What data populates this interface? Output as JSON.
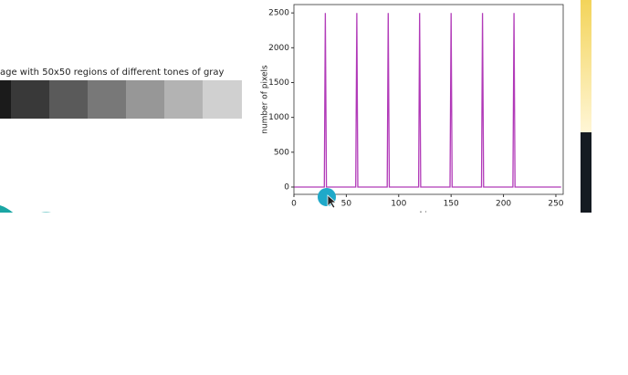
{
  "caption": "age with 50x50 regions of different tones of gray",
  "strip_colors": [
    "#1b1b1b",
    "#393939",
    "#5a5a5a",
    "#787878",
    "#979797",
    "#b3b3b3",
    "#d0d0d0"
  ],
  "chart_data": {
    "type": "line",
    "ylabel": "number of pixels",
    "xlabel": "bins",
    "x": [
      0,
      29,
      30,
      31,
      59,
      60,
      61,
      89,
      90,
      91,
      119,
      120,
      121,
      149,
      150,
      151,
      179,
      180,
      181,
      209,
      210,
      211,
      255
    ],
    "series": [
      {
        "color": "#b13ab8",
        "values": [
          0,
          0,
          2500,
          0,
          0,
          2500,
          0,
          0,
          2500,
          0,
          0,
          2500,
          0,
          0,
          2500,
          0,
          0,
          2500,
          0,
          0,
          2500,
          0,
          0
        ]
      }
    ],
    "xlim": [
      0,
      257
    ],
    "ylim": [
      -105,
      2620
    ],
    "xticks": [
      0,
      50,
      100,
      150,
      200,
      250
    ],
    "yticks": [
      0,
      500,
      1000,
      1500,
      2000,
      2500
    ]
  }
}
